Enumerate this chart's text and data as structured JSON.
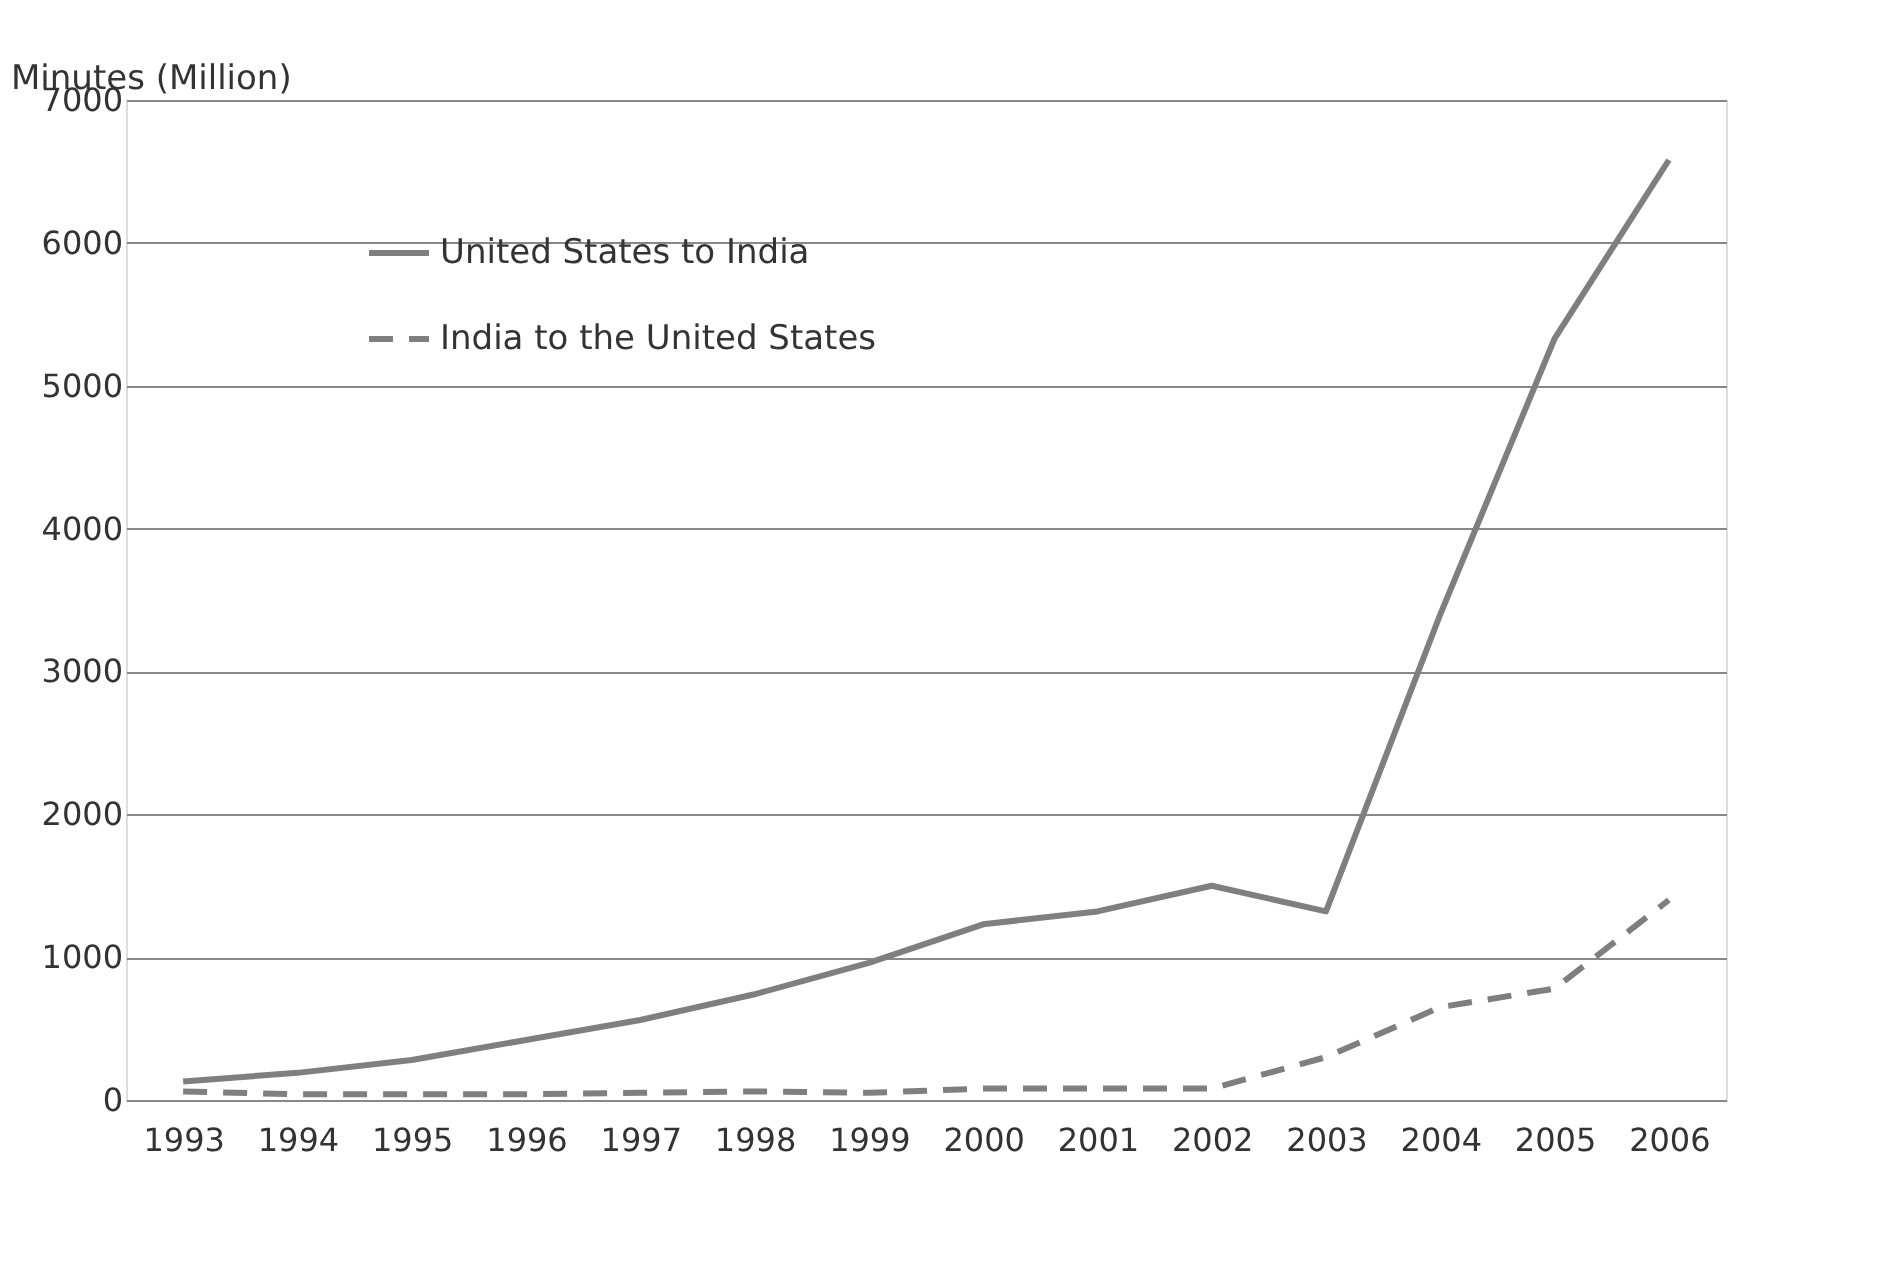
{
  "chart_data": {
    "type": "line",
    "ylabel": "Minutes (Million)",
    "categories": [
      "1993",
      "1994",
      "1995",
      "1996",
      "1997",
      "1998",
      "1999",
      "2000",
      "2001",
      "2002",
      "2003",
      "2004",
      "2005",
      "2006"
    ],
    "series": [
      {
        "name": "United States to India",
        "color": "#7f7f7f",
        "line_style": "solid",
        "values": [
          130,
          190,
          280,
          420,
          560,
          740,
          960,
          1230,
          1320,
          1500,
          1320,
          3400,
          5330,
          6580
        ]
      },
      {
        "name": "India to the United States",
        "color": "#7f7f7f",
        "line_style": "dashed",
        "values": [
          60,
          40,
          40,
          40,
          50,
          60,
          50,
          80,
          80,
          80,
          300,
          650,
          780,
          1400
        ]
      }
    ],
    "ylim": [
      0,
      7000
    ],
    "yticks": [
      0,
      1000,
      2000,
      3000,
      4000,
      5000,
      6000,
      7000
    ],
    "grid": "y",
    "legend": "top left",
    "marker": "none"
  }
}
